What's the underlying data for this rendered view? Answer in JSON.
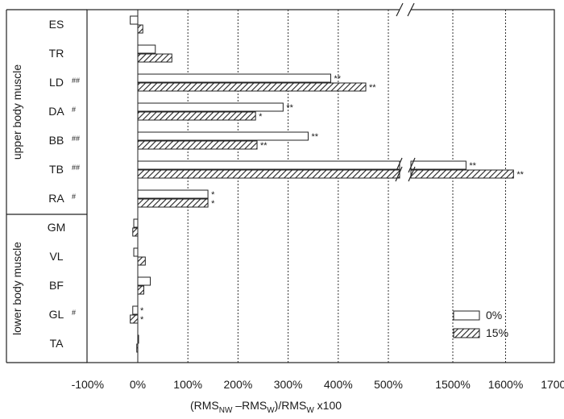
{
  "chart_data": {
    "type": "bar",
    "orientation": "horizontal",
    "xlabel_parts": {
      "base": "(RMS",
      "sub1": "NW",
      "mid": " –RMS",
      "sub2": "W",
      "mid2": ")/RMS",
      "sub3": "W",
      "tail": " x100"
    },
    "x_ticks": [
      "-100%",
      "0%",
      "100%",
      "200%",
      "300%",
      "400%",
      "500%",
      "1500%",
      "1600%",
      "1700%"
    ],
    "x_break": {
      "from": 500,
      "to": 1500
    },
    "grid": "vertical-dotted",
    "groups": [
      {
        "name": "upper body muscle",
        "muscles": [
          "ES",
          "TR",
          "LD",
          "DA",
          "BB",
          "TB",
          "RA"
        ]
      },
      {
        "name": "lower body muscle",
        "muscles": [
          "GM",
          "VL",
          "BF",
          "GL",
          "TA"
        ]
      }
    ],
    "categories": [
      "ES",
      "TR",
      "LD",
      "DA",
      "BB",
      "TB",
      "RA",
      "GM",
      "VL",
      "BF",
      "GL",
      "TA"
    ],
    "category_marks": [
      "",
      "",
      "##",
      "#",
      "##",
      "##",
      "#",
      "",
      "",
      "",
      "#",
      ""
    ],
    "series": [
      {
        "name": "0%",
        "pattern": "open",
        "values": [
          -15,
          35,
          385,
          290,
          340,
          1525,
          140,
          -8,
          -8,
          25,
          -10,
          0
        ],
        "labels": [
          "",
          "",
          "**",
          "**",
          "**",
          "**",
          "*",
          "",
          "",
          "",
          "*",
          ""
        ]
      },
      {
        "name": "15%",
        "pattern": "hatched",
        "values": [
          10,
          68,
          455,
          235,
          238,
          1615,
          140,
          -10,
          15,
          12,
          -15,
          -2
        ],
        "labels": [
          "",
          "",
          "**",
          "*",
          "**",
          "**",
          "*",
          "",
          "",
          "",
          "*",
          ""
        ]
      }
    ],
    "legend_position": "bottom-right"
  }
}
